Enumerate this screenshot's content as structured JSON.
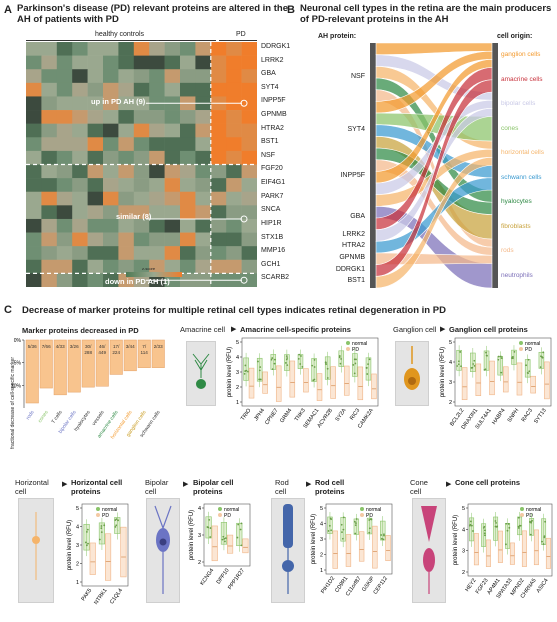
{
  "panelA": {
    "letter": "A",
    "title": "Parkinson's disease (PD) relevant proteins are altered in the AH of patients with PD",
    "group_healthy": "healthy controls",
    "group_pd": "PD",
    "genes": [
      "DDRGK1",
      "LRRK2",
      "GBA",
      "SYT4",
      "INPP5F",
      "GPNMB",
      "HTRA2",
      "BST1",
      "NSF",
      "FGF20",
      "EIF4G1",
      "PARK7",
      "SNCA",
      "HIP1R",
      "STX1B",
      "MMP16",
      "GCH1",
      "SCARB2"
    ],
    "annotations": [
      "up in PD AH (9)",
      "similar (8)",
      "down in PD AH (1)"
    ],
    "colorbar_title": "z-score",
    "colorbar_ticks": [
      "-4",
      "-3",
      "-2",
      "-1",
      "0",
      "1",
      "2",
      "3",
      "4"
    ],
    "colors": {
      "up": "#f07d2b",
      "down": "#6f8f73",
      "mid": "#9aa88f"
    }
  },
  "panelB": {
    "letter": "B",
    "title": "Neuronal cell types in the retina are the main producers of PD-relevant proteins in the AH",
    "left_header": "AH protein:",
    "right_header": "cell origin:",
    "proteins": [
      "NSF",
      "SYT4",
      "INPP5F",
      "GBA",
      "LRRK2",
      "HTRA2",
      "GPNMB",
      "DDRGK1",
      "BST1"
    ],
    "cells": [
      {
        "name": "ganglion cells",
        "color": "#f39a2e"
      },
      {
        "name": "amacrine cells",
        "color": "#c8323c"
      },
      {
        "name": "bipolar cells",
        "color": "#c9c9e6"
      },
      {
        "name": "cones",
        "color": "#8ac46a"
      },
      {
        "name": "horizontal cells",
        "color": "#f5b46a"
      },
      {
        "name": "schwann cells",
        "color": "#3a9ad0"
      },
      {
        "name": "hyalocytes",
        "color": "#2f8a45"
      },
      {
        "name": "fibroblasts",
        "color": "#c8a23c"
      },
      {
        "name": "rods",
        "color": "#f4b98a"
      },
      {
        "name": "neutrophils",
        "color": "#7c6fb8"
      }
    ]
  },
  "panelC": {
    "letter": "C",
    "title": "Decrease of marker proteins for multiple retinal cell types indicates retinal degeneration in PD",
    "marker_title": "Marker proteins decreased in PD",
    "marker_ylabel": "fractional decrease of cell-specific marker",
    "marker_yticks": [
      "0%",
      "5%",
      "10%"
    ],
    "legend_normal": "normal",
    "legend_pd": "PD",
    "ylabel_protein": "protein level (RFU)",
    "bars": [
      {
        "cell": "rods",
        "label": "5/36",
        "color": "#6b74c4"
      },
      {
        "cell": "cones",
        "label": "7/66",
        "color": "#8ac46a"
      },
      {
        "cell": "T cells",
        "label": "4/33",
        "color": "#333333"
      },
      {
        "cell": "bipolar cells",
        "label": "3/26",
        "color": "#6b74c4"
      },
      {
        "cell": "hyalocytes",
        "label": "30/ 288",
        "color": "#333333"
      },
      {
        "cell": "vessels",
        "label": "46/ 449",
        "color": "#333333"
      },
      {
        "cell": "amacrine cells",
        "label": "17/ 224",
        "color": "#2f8a45"
      },
      {
        "cell": "horizontal cells",
        "label": "3/44",
        "color": "#f39a2e"
      },
      {
        "cell": "ganglion cells",
        "label": "7/ 114",
        "color": "#c89a1e"
      },
      {
        "cell": "schwann cells",
        "label": "2/33",
        "color": "#333333"
      }
    ],
    "chart_data": [
      {
        "type": "bar",
        "title": "Marker proteins decreased in PD",
        "categories": [
          "rods",
          "cones",
          "T cells",
          "bipolar cells",
          "hyalocytes",
          "vessels",
          "amacrine cells",
          "horizontal cells",
          "ganglion cells",
          "schwann cells"
        ],
        "values": [
          13.9,
          10.6,
          12.1,
          11.5,
          10.4,
          10.2,
          7.6,
          6.8,
          6.1,
          6.1
        ],
        "ylabel": "fractional decrease of cell-specific marker",
        "ylim": [
          0,
          15
        ]
      }
    ],
    "amacrine": {
      "cell": "Amacrine cell",
      "title": "Amacrine cell-specific proteins",
      "yticks": [
        "5",
        "4",
        "3",
        "2",
        "1"
      ],
      "genes": [
        "TRIO",
        "JPH4",
        "CPNE7",
        "GRM4",
        "TNK3",
        "SEMAC1",
        "ACVR2B",
        "SY2A",
        "RIC3",
        "CAMK2A"
      ]
    },
    "ganglion": {
      "cell": "Ganglion cell",
      "title": "Ganglion cell proteins",
      "yticks": [
        "5",
        "4",
        "3",
        "2"
      ],
      "genes": [
        "BCL2L2",
        "DRAXIN1",
        "SULT4A1",
        "HABP4",
        "SNPH",
        "RAC3",
        "SYT13"
      ]
    },
    "horizontal": {
      "cell": "Horizontal cell",
      "title": "Horizontal cell proteins",
      "yticks": [
        "5",
        "4",
        "3",
        "2",
        "1"
      ],
      "genes": [
        "PAK5",
        "NTRK1",
        "C1QL4"
      ]
    },
    "bipolar": {
      "cell": "Bipolar cell",
      "title": "Bipolar cell proteins",
      "yticks": [
        "4",
        "3",
        "2"
      ],
      "genes": [
        "KCNG4",
        "DPP10",
        "PPP1R27"
      ]
    },
    "rod": {
      "cell": "Rod cell",
      "title": "Rod cell proteins",
      "yticks": [
        "5",
        "4",
        "3",
        "2",
        "1"
      ],
      "genes": [
        "PIH1D2",
        "CD9R1",
        "C11orf87",
        "GSKIP",
        "CEP112"
      ]
    },
    "cone": {
      "cell": "Cone cell",
      "title": "Cone cell proteins",
      "yticks": [
        "5",
        "4",
        "3",
        "2"
      ],
      "genes": [
        "HEY2",
        "FGF23",
        "AP4M1",
        "SPATA33",
        "MPND2",
        "CHRNA5",
        "ASIC4"
      ]
    }
  }
}
